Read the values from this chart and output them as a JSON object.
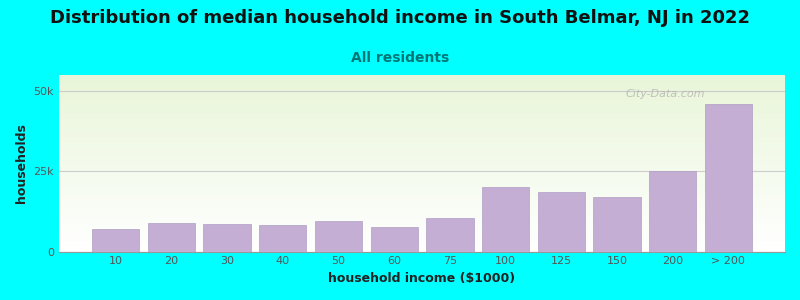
{
  "title": "Distribution of median household income in South Belmar, NJ in 2022",
  "subtitle": "All residents",
  "xlabel": "household income ($1000)",
  "ylabel": "households",
  "background_color": "#00FFFF",
  "plot_bg_gradient_top": "#e8f5d8",
  "plot_bg_gradient_bottom": "#ffffff",
  "bar_color": "#c4aed4",
  "bar_edge_color": "#b09ec4",
  "categories": [
    "10",
    "20",
    "30",
    "40",
    "50",
    "60",
    "75",
    "100",
    "125",
    "150",
    "200",
    "> 200"
  ],
  "values": [
    7000,
    9000,
    8500,
    8200,
    9500,
    7800,
    10500,
    20000,
    18500,
    17000,
    25000,
    46000
  ],
  "ylim": [
    0,
    55000
  ],
  "yticks": [
    0,
    25000,
    50000
  ],
  "ytick_labels": [
    "0",
    "25k",
    "50k"
  ],
  "title_fontsize": 13,
  "subtitle_fontsize": 10,
  "axis_label_fontsize": 9,
  "tick_fontsize": 8,
  "watermark_text": "City-Data.com",
  "watermark_color": "#aaaaaa"
}
